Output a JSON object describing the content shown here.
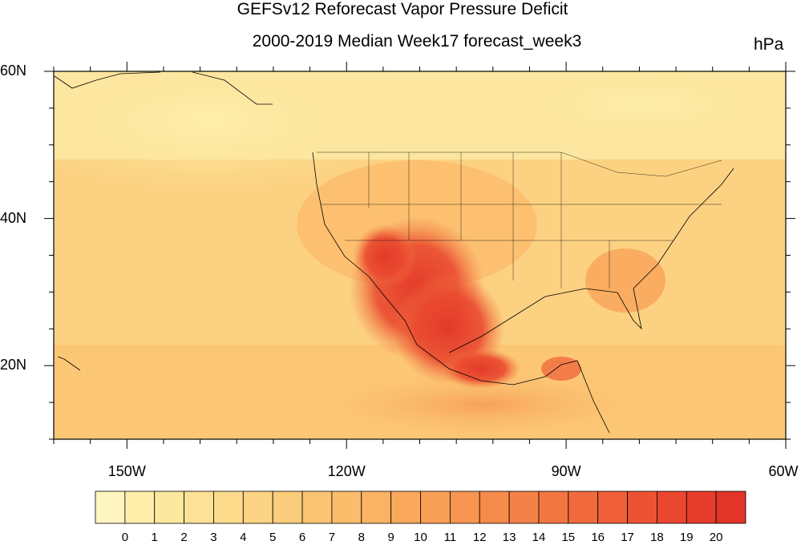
{
  "title": "GEFSv12 Reforecast Vapor Pressure Deficit",
  "subtitle": "2000-2019 Median Week17 forecast_week3",
  "units": "hPa",
  "map": {
    "projection": "cylindrical-equidistant",
    "lon_range": [
      -160,
      -60
    ],
    "lat_range": [
      10,
      60
    ],
    "x_ticks": [
      {
        "lon": -150,
        "label": "150W"
      },
      {
        "lon": -120,
        "label": "120W"
      },
      {
        "lon": -90,
        "label": "90W"
      },
      {
        "lon": -60,
        "label": "60W"
      }
    ],
    "y_ticks": [
      {
        "lat": 60,
        "label": "60N"
      },
      {
        "lat": 40,
        "label": "40N"
      },
      {
        "lat": 20,
        "label": "20N"
      }
    ]
  },
  "colorbar": {
    "labels": [
      "0",
      "1",
      "2",
      "3",
      "4",
      "5",
      "6",
      "7",
      "8",
      "9",
      "10",
      "11",
      "12",
      "13",
      "14",
      "15",
      "16",
      "17",
      "18",
      "19",
      "20"
    ],
    "colors": [
      "#fff5c0",
      "#feeeaa",
      "#fde8a0",
      "#fde196",
      "#fcdb8d",
      "#fcd483",
      "#fbcc7a",
      "#fbc472",
      "#fbbc6b",
      "#fab264",
      "#f9a85c",
      "#f89f56",
      "#f79551",
      "#f68b4c",
      "#f48147",
      "#f27642",
      "#f06a3d",
      "#ee5f38",
      "#ec5333",
      "#ea472f",
      "#e63c2b",
      "#e3342a"
    ]
  }
}
